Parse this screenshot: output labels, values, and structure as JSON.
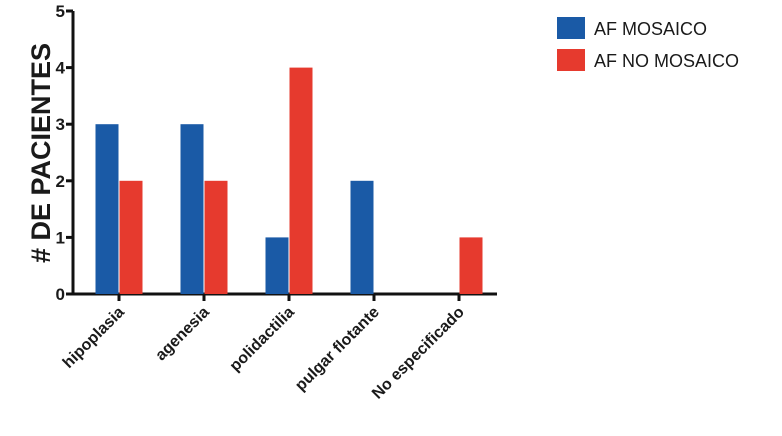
{
  "chart_data": {
    "type": "bar",
    "categories": [
      "hipoplasia",
      "agenesia",
      "polidactilia",
      "pulgar flotante",
      "No especificado"
    ],
    "series": [
      {
        "name": "AF MOSAICO",
        "color": "#1a5aa6",
        "values": [
          3,
          3,
          1,
          2,
          0
        ]
      },
      {
        "name": "AF NO MOSAICO",
        "color": "#e63a2e",
        "values": [
          2,
          2,
          4,
          0,
          1
        ]
      }
    ],
    "title": "",
    "xlabel": "",
    "ylabel": "# DE PACIENTES",
    "ylim": [
      0,
      5
    ],
    "yticks": [
      "0",
      "1",
      "2",
      "3",
      "4",
      "5"
    ],
    "grid": false,
    "legend_position": "top-right"
  }
}
